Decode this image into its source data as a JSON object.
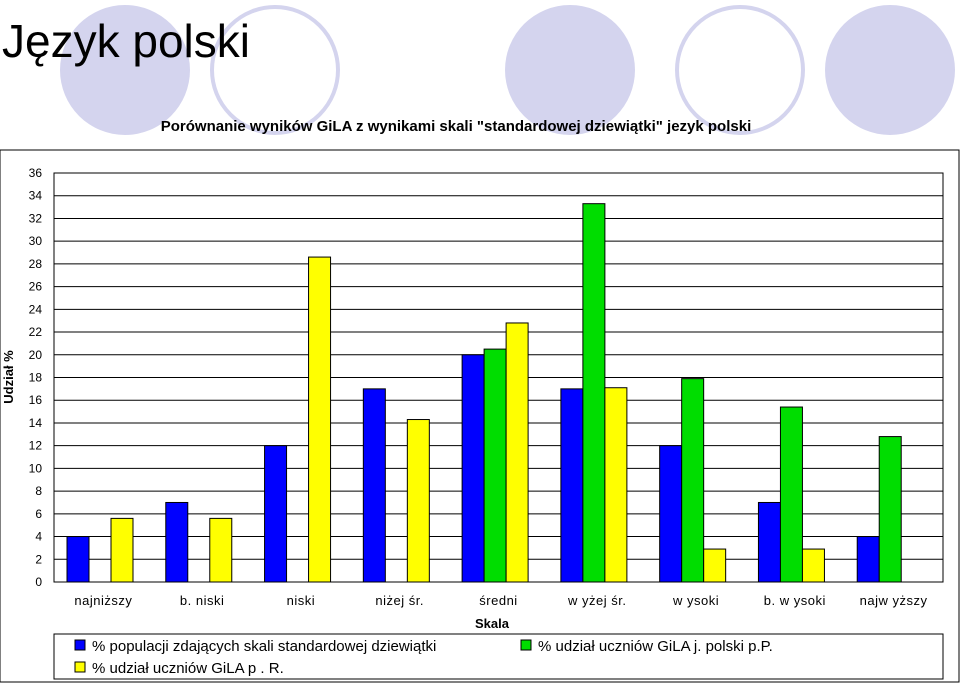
{
  "slide": {
    "title": "Język polski"
  },
  "chart_data": {
    "type": "bar",
    "title": "Porównanie wyników GiLA z wynikami skali \"standardowej dziewiątki\" jezyk polski",
    "xlabel": "Skala",
    "ylabel": "Udział %",
    "ylim": [
      0,
      36
    ],
    "ytick_step": 2,
    "grid": true,
    "legend_position": "bottom",
    "categories": [
      "najniższy",
      "b. niski",
      "niski",
      "niżej śr.",
      "średni",
      "w yżej śr.",
      "w ysoki",
      "b. w ysoki",
      "najw yższy"
    ],
    "series": [
      {
        "name": "% populacji zdających skali standardowej dziewiątki",
        "color": "#0000ff",
        "values": [
          4,
          7,
          12,
          17,
          20,
          17,
          12,
          7,
          4
        ]
      },
      {
        "name": "% udział uczniów GiLA j. polski p.P.",
        "color": "#00dd00",
        "values": [
          null,
          null,
          null,
          null,
          20.5,
          33.3,
          17.9,
          15.4,
          12.8
        ]
      },
      {
        "name": "% udział uczniów GiLA p . R.",
        "color": "#ffff00",
        "values": [
          5.6,
          5.6,
          28.6,
          14.3,
          22.8,
          17.1,
          2.9,
          2.9,
          null
        ]
      }
    ]
  }
}
